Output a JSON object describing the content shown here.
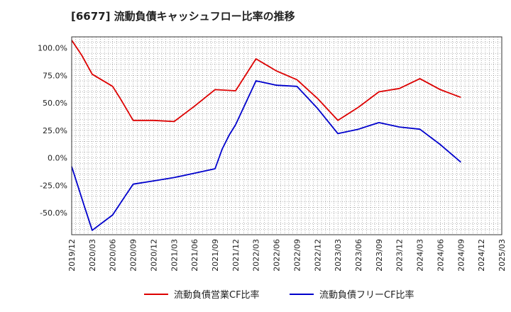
{
  "chart_data": {
    "type": "line",
    "title": "[6677]  流動負債キャッシュフロー比率の推移",
    "xlabel": "",
    "ylabel": "",
    "x": [
      "2019/12",
      "2020/03",
      "2020/06",
      "2020/09",
      "2020/12",
      "2021/03",
      "2021/06",
      "2021/09",
      "2021/12",
      "2022/03",
      "2022/06",
      "2022/09",
      "2022/12",
      "2023/03",
      "2023/06",
      "2023/09",
      "2023/12",
      "2024/03",
      "2024/06",
      "2024/09",
      "2024/12",
      "2025/03"
    ],
    "ylim": [
      -70,
      110
    ],
    "yticks": [
      -50,
      -25,
      0,
      25,
      50,
      75,
      100
    ],
    "ytick_labels": [
      "-50.0%",
      "-25.0%",
      "0.0%",
      "25.0%",
      "50.0%",
      "75.0%",
      "100.0%"
    ],
    "series": [
      {
        "name": "流動負債営業CF比率",
        "color": "#dd0000",
        "points": [
          [
            0,
            107
          ],
          [
            0.5,
            93
          ],
          [
            1,
            76
          ],
          [
            2,
            65
          ],
          [
            2.4,
            53
          ],
          [
            3,
            34
          ],
          [
            4,
            34
          ],
          [
            5,
            33
          ],
          [
            6,
            47
          ],
          [
            7,
            62
          ],
          [
            8,
            61
          ],
          [
            9,
            90
          ],
          [
            10,
            79
          ],
          [
            11,
            71
          ],
          [
            12,
            54
          ],
          [
            13,
            34
          ],
          [
            14,
            46
          ],
          [
            15,
            60
          ],
          [
            16,
            63
          ],
          [
            17,
            72
          ],
          [
            18,
            62
          ],
          [
            19,
            55
          ]
        ]
      },
      {
        "name": "流動負債フリーCF比率",
        "color": "#0000cc",
        "points": [
          [
            0,
            -8
          ],
          [
            0.6,
            -43
          ],
          [
            1,
            -66
          ],
          [
            2,
            -52
          ],
          [
            2.5,
            -38
          ],
          [
            3,
            -24
          ],
          [
            4,
            -21
          ],
          [
            5,
            -18
          ],
          [
            6,
            -14
          ],
          [
            7,
            -10
          ],
          [
            7.35,
            8
          ],
          [
            7.7,
            21
          ],
          [
            8,
            30
          ],
          [
            9,
            70
          ],
          [
            10,
            66
          ],
          [
            11,
            65
          ],
          [
            12,
            45
          ],
          [
            13,
            22
          ],
          [
            14,
            26
          ],
          [
            15,
            32
          ],
          [
            16,
            28
          ],
          [
            17,
            26
          ],
          [
            18,
            12
          ],
          [
            19,
            -4
          ]
        ]
      }
    ],
    "legend_position": "bottom",
    "grid": true
  }
}
